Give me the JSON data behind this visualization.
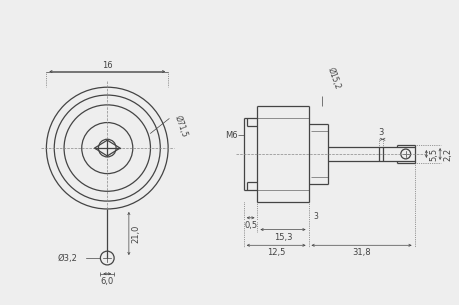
{
  "bg_color": "#eeeeee",
  "line_color": "#444444",
  "dim_color": "#444444",
  "centerline_color": "#888888",
  "dim_font_size": 6.0,
  "annotations": {
    "dim_16": "16",
    "dim_715": "Ø71,5",
    "dim_21": "21,0",
    "dim_37": "Ø3,2",
    "dim_60": "6,0",
    "dim_152": "Ø15,2",
    "dim_M6": "M6",
    "dim_05": "0,5",
    "dim_3a": "3",
    "dim_153": "15,3",
    "dim_125": "12,5",
    "dim_318": "31,8",
    "dim_3b": "3",
    "dim_55": "5,5",
    "dim_22": "2,2"
  }
}
